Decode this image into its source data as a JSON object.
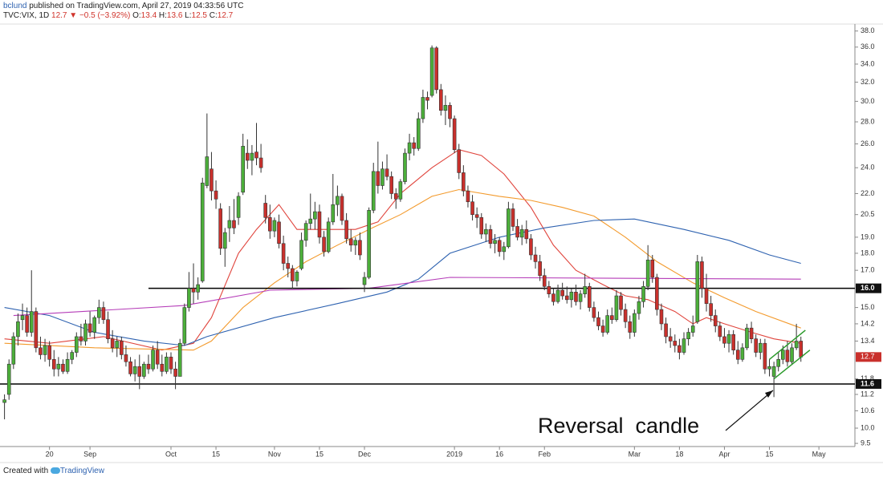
{
  "header": {
    "author": "bclund",
    "published": "published on TradingView.com, April 27, 2019 04:33:56 UTC",
    "symbol": "TVC:VIX, 1D",
    "last": "12.7 ▼ −0.5 (−3.92%)",
    "ohlc": [
      {
        "label": "O:",
        "value": "13.4"
      },
      {
        "label": "H:",
        "value": "13.6"
      },
      {
        "label": "L:",
        "value": "12.5"
      },
      {
        "label": "C:",
        "value": "12.7"
      }
    ]
  },
  "chart_data": {
    "type": "candlestick",
    "log_scale": true,
    "up_color": "#4caf3a",
    "down_color": "#c9302c",
    "ylim": [
      9.4,
      38.9
    ],
    "yticks": [
      {
        "value": 38,
        "label": "38.0"
      },
      {
        "value": 36,
        "label": "36.0"
      },
      {
        "value": 34,
        "label": "34.0"
      },
      {
        "value": 32,
        "label": "32.0"
      },
      {
        "value": 30,
        "label": "30.0"
      },
      {
        "value": 28,
        "label": "28.0"
      },
      {
        "value": 26,
        "label": "26.0"
      },
      {
        "value": 24,
        "label": "24.0"
      },
      {
        "value": 22,
        "label": "22.0"
      },
      20.5,
      {
        "value": 19,
        "label": "19.0"
      },
      {
        "value": 18,
        "label": "18.0"
      },
      {
        "value": 17,
        "label": "17.0"
      },
      {
        "value": 15,
        "label": "15.0"
      },
      14.2,
      13.4,
      11.8,
      11.2,
      10.6,
      {
        "value": 10,
        "label": "10.0"
      },
      9.5
    ],
    "xlim": [
      -1,
      189
    ],
    "xticks": [
      {
        "value": 10,
        "label": "20"
      },
      {
        "value": 19,
        "label": "Sep"
      },
      {
        "value": 37,
        "label": "Oct"
      },
      {
        "value": 47,
        "label": "15"
      },
      {
        "value": 60,
        "label": "Nov"
      },
      {
        "value": 70,
        "label": "15"
      },
      {
        "value": 80,
        "label": "Dec"
      },
      {
        "value": 100,
        "label": "2019"
      },
      {
        "value": 110,
        "label": "16"
      },
      {
        "value": 120,
        "label": "Feb"
      },
      {
        "value": 140,
        "label": "Mar"
      },
      {
        "value": 150,
        "label": "18"
      },
      {
        "value": 160,
        "label": "Apr"
      },
      {
        "value": 170,
        "label": "15"
      },
      {
        "value": 181,
        "label": "May"
      }
    ],
    "candles": [
      [
        10.9,
        11.2,
        10.3,
        11.0
      ],
      [
        11.2,
        12.6,
        11.0,
        12.4
      ],
      [
        12.4,
        13.8,
        12.2,
        13.6
      ],
      [
        13.6,
        14.7,
        13.2,
        14.3
      ],
      [
        14.4,
        15.2,
        13.9,
        14.6
      ],
      [
        14.6,
        15.0,
        13.6,
        13.8
      ],
      [
        13.8,
        17.0,
        13.6,
        14.8
      ],
      [
        14.8,
        15.0,
        12.9,
        13.1
      ],
      [
        13.1,
        13.6,
        12.6,
        12.8
      ],
      [
        12.8,
        13.5,
        12.5,
        13.2
      ],
      [
        13.2,
        13.4,
        12.3,
        12.6
      ],
      [
        12.6,
        13.0,
        11.9,
        12.2
      ],
      [
        12.2,
        12.7,
        11.9,
        12.4
      ],
      [
        12.4,
        12.6,
        12.0,
        12.1
      ],
      [
        12.1,
        12.9,
        12.0,
        12.6
      ],
      [
        12.6,
        13.0,
        12.4,
        12.9
      ],
      [
        12.9,
        13.8,
        12.7,
        13.6
      ],
      [
        13.6,
        14.2,
        13.2,
        13.4
      ],
      [
        13.4,
        14.4,
        13.2,
        14.2
      ],
      [
        14.2,
        14.8,
        13.6,
        13.8
      ],
      [
        13.8,
        14.6,
        13.5,
        14.5
      ],
      [
        14.5,
        15.4,
        14.2,
        15.0
      ],
      [
        15.0,
        15.3,
        14.2,
        14.4
      ],
      [
        14.4,
        14.8,
        13.3,
        13.5
      ],
      [
        13.5,
        13.9,
        12.9,
        13.1
      ],
      [
        13.1,
        13.6,
        12.7,
        13.4
      ],
      [
        13.4,
        13.6,
        12.6,
        12.8
      ],
      [
        12.8,
        13.2,
        12.3,
        12.5
      ],
      [
        12.5,
        12.7,
        11.9,
        12.0
      ],
      [
        12.0,
        12.6,
        11.7,
        12.3
      ],
      [
        12.3,
        12.8,
        11.4,
        11.9
      ],
      [
        11.9,
        12.5,
        11.8,
        12.4
      ],
      [
        12.4,
        12.8,
        12.0,
        12.2
      ],
      [
        12.2,
        13.2,
        12.1,
        13.0
      ],
      [
        13.0,
        13.4,
        12.2,
        12.4
      ],
      [
        12.4,
        12.8,
        11.9,
        12.1
      ],
      [
        12.1,
        12.9,
        12.0,
        12.7
      ],
      [
        12.7,
        12.9,
        12.0,
        12.2
      ],
      [
        12.2,
        12.5,
        11.4,
        11.9
      ],
      [
        11.9,
        13.5,
        11.9,
        13.3
      ],
      [
        13.3,
        15.2,
        13.2,
        15.0
      ],
      [
        15.0,
        16.9,
        14.8,
        16.0
      ],
      [
        16.0,
        17.4,
        15.2,
        15.8
      ],
      [
        15.8,
        16.6,
        15.4,
        16.2
      ],
      [
        16.4,
        23.2,
        16.3,
        22.8
      ],
      [
        22.6,
        28.8,
        22.4,
        24.9
      ],
      [
        23.9,
        25.3,
        21.5,
        22.2
      ],
      [
        22.2,
        23.0,
        20.9,
        21.6
      ],
      [
        20.9,
        21.3,
        17.9,
        18.3
      ],
      [
        18.3,
        19.6,
        17.2,
        19.3
      ],
      [
        19.6,
        21.1,
        18.7,
        20.1
      ],
      [
        20.1,
        21.6,
        19.2,
        19.6
      ],
      [
        20.3,
        22.1,
        19.8,
        21.8
      ],
      [
        22.1,
        26.9,
        21.9,
        25.8
      ],
      [
        25.2,
        26.4,
        23.9,
        24.6
      ],
      [
        24.6,
        25.9,
        23.4,
        25.2
      ],
      [
        25.3,
        27.9,
        24.2,
        24.8
      ],
      [
        24.8,
        26.0,
        23.6,
        24.0
      ],
      [
        21.3,
        21.9,
        19.9,
        20.3
      ],
      [
        20.3,
        21.2,
        18.9,
        19.4
      ],
      [
        19.4,
        20.3,
        19.0,
        20.1
      ],
      [
        20.0,
        20.5,
        18.3,
        18.6
      ],
      [
        18.6,
        19.1,
        17.0,
        17.4
      ],
      [
        17.4,
        17.8,
        16.6,
        17.1
      ],
      [
        17.1,
        17.3,
        16.0,
        16.4
      ],
      [
        16.4,
        17.0,
        16.1,
        16.9
      ],
      [
        17.1,
        19.3,
        17.0,
        18.8
      ],
      [
        18.8,
        20.1,
        18.4,
        19.9
      ],
      [
        19.9,
        22.0,
        19.5,
        20.2
      ],
      [
        20.2,
        21.4,
        19.5,
        20.7
      ],
      [
        20.7,
        21.2,
        18.6,
        19.0
      ],
      [
        19.0,
        19.4,
        17.8,
        18.1
      ],
      [
        18.1,
        20.3,
        18.0,
        20.0
      ],
      [
        20.0,
        23.5,
        19.8,
        21.2
      ],
      [
        21.2,
        22.6,
        20.4,
        21.8
      ],
      [
        21.8,
        22.0,
        19.8,
        20.1
      ],
      [
        20.1,
        20.6,
        18.6,
        18.9
      ],
      [
        18.9,
        19.5,
        18.1,
        18.5
      ],
      [
        18.5,
        19.0,
        17.9,
        18.8
      ],
      [
        18.8,
        19.3,
        17.6,
        17.9
      ],
      [
        16.2,
        16.9,
        15.8,
        16.6
      ],
      [
        16.6,
        21.0,
        16.5,
        20.8
      ],
      [
        20.8,
        24.4,
        20.6,
        23.7
      ],
      [
        23.7,
        26.2,
        22.0,
        22.6
      ],
      [
        22.6,
        24.5,
        22.3,
        23.9
      ],
      [
        23.9,
        25.1,
        23.0,
        23.3
      ],
      [
        23.3,
        23.7,
        21.6,
        22.0
      ],
      [
        22.0,
        22.4,
        20.9,
        21.6
      ],
      [
        21.6,
        23.1,
        21.4,
        22.9
      ],
      [
        22.9,
        25.6,
        22.7,
        25.2
      ],
      [
        25.2,
        26.9,
        24.6,
        26.1
      ],
      [
        26.1,
        26.6,
        25.0,
        25.6
      ],
      [
        25.6,
        28.9,
        25.4,
        28.3
      ],
      [
        28.3,
        31.2,
        27.9,
        30.4
      ],
      [
        30.4,
        31.0,
        29.2,
        30.1
      ],
      [
        30.6,
        36.2,
        30.4,
        35.9
      ],
      [
        35.9,
        36.1,
        30.8,
        31.2
      ],
      [
        31.2,
        31.8,
        28.6,
        29.1
      ],
      [
        29.1,
        30.6,
        27.7,
        29.6
      ],
      [
        29.6,
        29.9,
        27.5,
        28.3
      ],
      [
        28.3,
        28.6,
        25.2,
        25.5
      ],
      [
        25.5,
        26.0,
        23.1,
        23.6
      ],
      [
        23.6,
        24.2,
        21.8,
        22.2
      ],
      [
        22.2,
        22.6,
        21.0,
        21.4
      ],
      [
        21.4,
        21.9,
        20.1,
        20.5
      ],
      [
        20.5,
        21.0,
        19.6,
        20.3
      ],
      [
        20.3,
        20.6,
        18.9,
        19.2
      ],
      [
        19.2,
        19.9,
        18.7,
        19.5
      ],
      [
        19.5,
        19.8,
        18.3,
        18.6
      ],
      [
        18.6,
        19.2,
        18.0,
        18.8
      ],
      [
        18.8,
        19.0,
        17.8,
        18.1
      ],
      [
        18.1,
        18.7,
        17.6,
        18.4
      ],
      [
        18.4,
        21.4,
        18.3,
        20.9
      ],
      [
        20.9,
        21.3,
        19.4,
        19.7
      ],
      [
        19.7,
        20.2,
        18.8,
        19.0
      ],
      [
        19.0,
        19.8,
        18.5,
        19.5
      ],
      [
        19.5,
        20.1,
        18.6,
        18.9
      ],
      [
        18.9,
        19.2,
        17.6,
        17.9
      ],
      [
        17.9,
        18.4,
        17.1,
        17.5
      ],
      [
        17.5,
        17.9,
        16.4,
        16.7
      ],
      [
        16.7,
        17.1,
        15.9,
        16.1
      ],
      [
        16.1,
        16.4,
        15.5,
        15.7
      ],
      [
        15.7,
        16.0,
        15.1,
        15.3
      ],
      [
        15.3,
        16.2,
        15.2,
        15.9
      ],
      [
        15.9,
        16.3,
        15.4,
        15.6
      ],
      [
        15.6,
        16.1,
        15.2,
        15.4
      ],
      [
        15.4,
        16.0,
        15.0,
        15.8
      ],
      [
        15.8,
        16.2,
        15.1,
        15.3
      ],
      [
        15.3,
        15.9,
        14.9,
        15.7
      ],
      [
        15.7,
        16.8,
        15.5,
        16.1
      ],
      [
        16.1,
        16.3,
        14.8,
        15.0
      ],
      [
        15.0,
        15.3,
        14.3,
        14.5
      ],
      [
        14.5,
        14.8,
        13.9,
        14.1
      ],
      [
        14.1,
        14.4,
        13.6,
        13.8
      ],
      [
        13.8,
        14.9,
        13.7,
        14.6
      ],
      [
        14.6,
        15.0,
        14.2,
        14.4
      ],
      [
        14.4,
        15.9,
        14.3,
        15.6
      ],
      [
        15.6,
        15.8,
        14.6,
        14.9
      ],
      [
        14.9,
        15.2,
        14.0,
        14.3
      ],
      [
        14.3,
        14.6,
        13.5,
        13.8
      ],
      [
        13.8,
        14.9,
        13.6,
        14.7
      ],
      [
        14.7,
        15.6,
        14.4,
        15.3
      ],
      [
        15.3,
        16.4,
        15.0,
        16.1
      ],
      [
        16.1,
        18.5,
        15.9,
        17.6
      ],
      [
        17.6,
        17.9,
        16.3,
        16.6
      ],
      [
        16.6,
        16.8,
        14.6,
        14.9
      ],
      [
        14.9,
        15.2,
        13.9,
        14.2
      ],
      [
        14.2,
        14.5,
        13.3,
        13.6
      ],
      [
        13.6,
        14.0,
        13.1,
        13.4
      ],
      [
        13.4,
        13.7,
        12.9,
        13.2
      ],
      [
        13.2,
        13.5,
        12.6,
        12.9
      ],
      [
        12.9,
        13.8,
        12.8,
        13.5
      ],
      [
        13.5,
        14.0,
        13.2,
        13.8
      ],
      [
        13.8,
        14.6,
        13.6,
        14.1
      ],
      [
        14.3,
        17.9,
        14.2,
        17.5
      ],
      [
        17.5,
        17.8,
        15.5,
        16.0
      ],
      [
        16.0,
        16.8,
        14.8,
        15.2
      ],
      [
        15.2,
        15.6,
        14.3,
        14.6
      ],
      [
        14.6,
        14.9,
        13.8,
        14.1
      ],
      [
        14.1,
        14.3,
        13.4,
        13.6
      ],
      [
        13.6,
        14.0,
        13.1,
        13.3
      ],
      [
        13.3,
        13.9,
        12.9,
        13.7
      ],
      [
        13.7,
        13.9,
        12.8,
        13.0
      ],
      [
        13.0,
        13.4,
        12.4,
        12.6
      ],
      [
        12.6,
        13.3,
        12.5,
        13.1
      ],
      [
        13.1,
        14.2,
        13.0,
        14.0
      ],
      [
        14.0,
        14.3,
        13.3,
        13.5
      ],
      [
        13.5,
        13.7,
        12.7,
        12.9
      ],
      [
        12.9,
        13.5,
        12.6,
        13.3
      ],
      [
        13.3,
        13.5,
        12.0,
        12.2
      ],
      [
        12.2,
        12.6,
        11.9,
        12.3
      ],
      [
        11.9,
        12.5,
        11.1,
        12.3
      ],
      [
        12.3,
        12.9,
        12.1,
        12.6
      ],
      [
        12.6,
        13.2,
        12.4,
        13.0
      ],
      [
        13.0,
        13.4,
        12.3,
        12.5
      ],
      [
        12.5,
        13.3,
        12.4,
        13.1
      ],
      [
        13.1,
        14.2,
        13.0,
        13.4
      ],
      [
        13.4,
        13.6,
        12.5,
        12.7
      ]
    ],
    "series": [
      {
        "color": "#e0443c",
        "x": [
          0,
          10,
          22,
          35,
          42,
          46,
          52,
          56,
          61,
          65,
          71,
          78,
          83,
          88,
          95,
          101,
          106,
          111,
          117,
          122,
          127,
          133,
          138,
          143,
          149,
          153,
          156,
          160,
          166,
          171,
          177
        ],
        "values": [
          13.5,
          13.3,
          13.6,
          13.0,
          13.3,
          14.5,
          18.0,
          19.5,
          21.2,
          19.5,
          19.5,
          19.5,
          20.0,
          22.0,
          24.0,
          25.5,
          25.0,
          23.5,
          21.0,
          18.5,
          17.0,
          16.2,
          15.6,
          15.4,
          14.8,
          14.2,
          14.5,
          14.2,
          13.8,
          13.5,
          13.3
        ]
      },
      {
        "color": "#f39a2c",
        "x": [
          0,
          20,
          42,
          46,
          53,
          60,
          67,
          74,
          81,
          88,
          95,
          101,
          110,
          117,
          124,
          131,
          138,
          145,
          153,
          160,
          167,
          177
        ],
        "values": [
          13.3,
          13.1,
          13.0,
          13.4,
          15.0,
          16.3,
          17.5,
          18.5,
          19.5,
          20.5,
          21.8,
          22.3,
          21.8,
          21.5,
          21.0,
          20.4,
          19.0,
          17.5,
          16.3,
          15.5,
          14.8,
          14.0
        ]
      },
      {
        "color": "#2e62b0",
        "x": [
          0,
          10,
          20,
          31,
          40,
          45,
          60,
          74,
          85,
          92,
          99,
          110,
          120,
          131,
          140,
          151,
          161,
          170,
          177
        ],
        "values": [
          15.0,
          14.6,
          13.8,
          13.4,
          13.2,
          13.6,
          14.5,
          15.2,
          15.8,
          16.5,
          18.0,
          19.0,
          19.6,
          20.1,
          20.2,
          19.5,
          18.8,
          17.9,
          17.4
        ]
      },
      {
        "color": "#b53cb8",
        "x": [
          2,
          40,
          59,
          81,
          99,
          177
        ],
        "values": [
          14.6,
          15.1,
          15.9,
          16.0,
          16.6,
          16.5
        ]
      }
    ],
    "levels": [
      {
        "value": 16,
        "label": "16.0",
        "x": [
          32,
          189
        ]
      },
      {
        "value": 11.6,
        "label": "11.6",
        "x": [
          -1,
          189
        ]
      }
    ],
    "trendlines": [
      {
        "color": "#2a9a2a",
        "x": [
          170,
          178
        ],
        "values": [
          12.6,
          13.9
        ]
      },
      {
        "color": "#2a9a2a",
        "x": [
          171,
          179
        ],
        "values": [
          11.8,
          13.0
        ]
      }
    ],
    "annotation": "Reversal  candle"
  },
  "footer": {
    "created": "Created with",
    "brand": "TradingView"
  }
}
